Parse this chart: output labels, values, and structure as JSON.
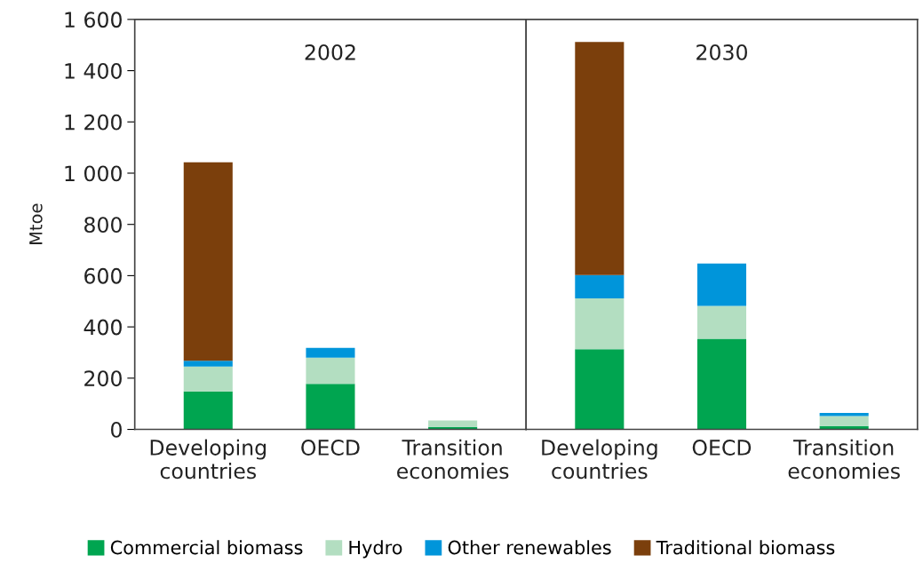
{
  "chart_data": [
    {
      "type": "bar",
      "stacked": true,
      "title": "2002",
      "ylabel": "Mtoe",
      "categories": [
        "Developing\ncountries",
        "OECD",
        "Transition\neconomies"
      ],
      "series": [
        {
          "name": "Commercial biomass",
          "color": "#00a550",
          "values": [
            148,
            178,
            10
          ]
        },
        {
          "name": "Hydro",
          "color": "#b3dec1",
          "values": [
            97,
            102,
            25
          ]
        },
        {
          "name": "Other renewables",
          "color": "#0095da",
          "values": [
            23,
            38,
            0
          ]
        },
        {
          "name": "Traditional biomass",
          "color": "#7b3f0c",
          "values": [
            774,
            0,
            0
          ]
        }
      ],
      "ylim": [
        0,
        1600
      ],
      "yticks": [
        0,
        200,
        400,
        600,
        800,
        {
          "value": 1000,
          "label": "1 000"
        },
        {
          "value": 1200,
          "label": "1 200"
        },
        {
          "value": 1400,
          "label": "1 400"
        },
        {
          "value": 1600,
          "label": "1 600"
        }
      ],
      "grid": false,
      "legend": "bottom"
    },
    {
      "type": "bar",
      "stacked": true,
      "title": "2030",
      "categories": [
        "Developing\ncountries",
        "OECD",
        "Transition\neconomies"
      ],
      "series": [
        {
          "color": "#00a550",
          "values": [
            313,
            354,
            13
          ]
        },
        {
          "color": "#b3dec1",
          "values": [
            198,
            128,
            39
          ]
        },
        {
          "color": "#0095da",
          "values": [
            91,
            165,
            12
          ]
        },
        {
          "color": "#7b3f0c",
          "values": [
            910,
            0,
            0
          ]
        }
      ],
      "ylim": [
        0,
        1600
      ],
      "tick_labels": "x",
      "grid": false,
      "legend": false
    }
  ]
}
